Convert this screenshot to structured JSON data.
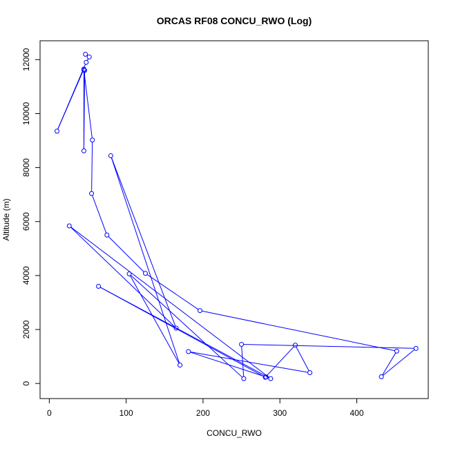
{
  "chart_data": {
    "type": "line",
    "title": "ORCAS RF08 CONCU_RWO (Log)",
    "xlabel": "CONCU_RWO",
    "ylabel": "Altitude (m)",
    "xlim": [
      -12,
      493
    ],
    "ylim": [
      -560,
      12700
    ],
    "x_ticks": [
      0,
      100,
      200,
      300,
      400
    ],
    "x_tick_labels": [
      "0",
      "100",
      "200",
      "300",
      "400"
    ],
    "y_ticks": [
      0,
      2000,
      4000,
      6000,
      8000,
      10000,
      12000
    ],
    "y_tick_labels": [
      "0",
      "2000",
      "4000",
      "6000",
      "8000",
      "10000",
      "12000"
    ],
    "grid": false,
    "colors": {
      "series": "#0000ff",
      "axis": "#000000",
      "background": "#ffffff"
    },
    "series": [
      {
        "points": [
          {
            "x": 47,
            "y": 12200
          },
          {
            "x": 52,
            "y": 12100
          },
          {
            "x": 48,
            "y": 11900
          },
          {
            "x": 10,
            "y": 9350
          },
          {
            "x": 45,
            "y": 11650
          },
          {
            "x": 46,
            "y": 11600
          },
          {
            "x": 45,
            "y": 8620
          },
          {
            "x": 45,
            "y": 11620
          },
          {
            "x": 56,
            "y": 9020
          },
          {
            "x": 55,
            "y": 7040
          },
          {
            "x": 75,
            "y": 5500
          },
          {
            "x": 125,
            "y": 4080
          },
          {
            "x": 196,
            "y": 2700
          },
          {
            "x": 452,
            "y": 1200
          },
          {
            "x": 432,
            "y": 250
          },
          {
            "x": 477,
            "y": 1300
          },
          {
            "x": 250,
            "y": 1450
          },
          {
            "x": 253,
            "y": 180
          },
          {
            "x": 104,
            "y": 4060
          },
          {
            "x": 170,
            "y": 680
          },
          {
            "x": 80,
            "y": 8440
          },
          {
            "x": 165,
            "y": 2050
          },
          {
            "x": 26,
            "y": 5840
          },
          {
            "x": 288,
            "y": 180
          },
          {
            "x": 64,
            "y": 3600
          },
          {
            "x": 281,
            "y": 230
          },
          {
            "x": 320,
            "y": 1420
          },
          {
            "x": 339,
            "y": 400
          },
          {
            "x": 181,
            "y": 1180
          },
          {
            "x": 282,
            "y": 240
          }
        ]
      }
    ]
  }
}
